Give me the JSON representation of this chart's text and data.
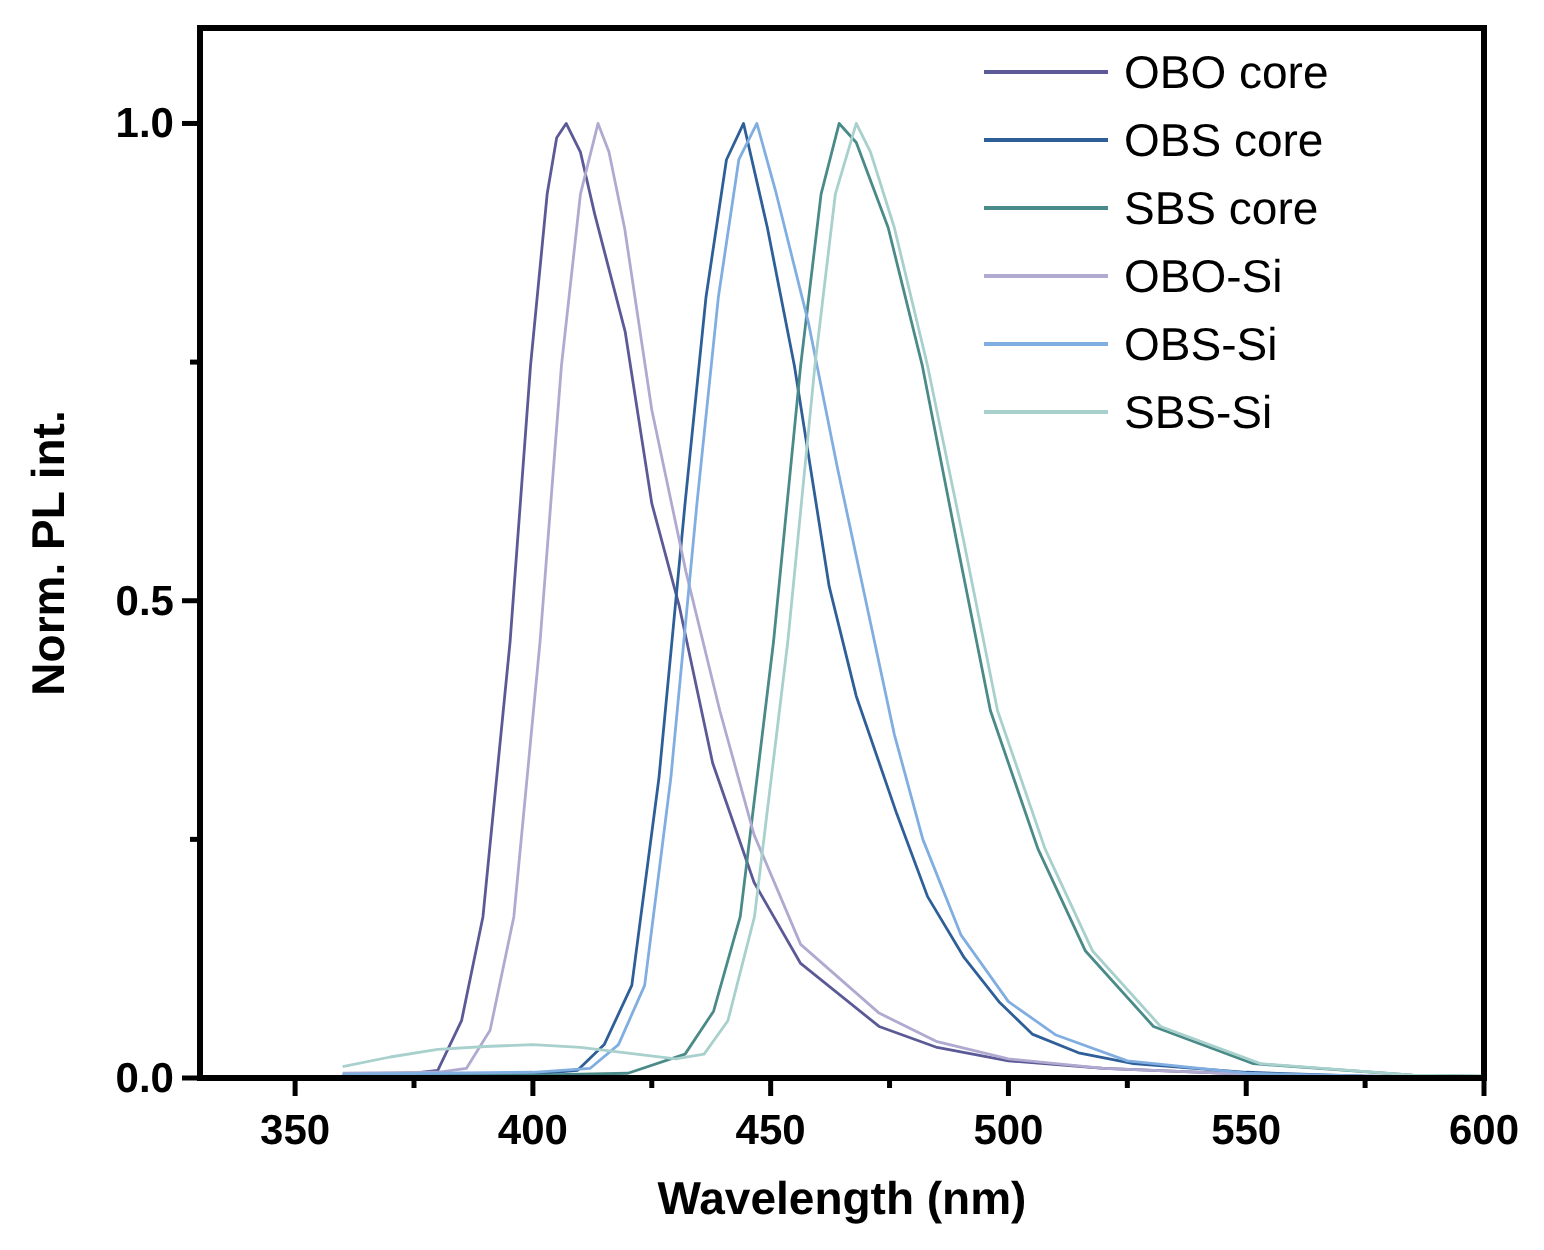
{
  "chart_data": {
    "type": "line",
    "xlabel": "Wavelength (nm)",
    "ylabel": "Norm. PL int.",
    "xlim": [
      330,
      600
    ],
    "ylim": [
      0,
      1.1
    ],
    "xticks": [
      350,
      {
        "value": 375,
        "label": null
      },
      400,
      {
        "value": 425,
        "label": null
      },
      450,
      {
        "value": 475,
        "label": null
      },
      500,
      {
        "value": 525,
        "label": null
      },
      550,
      {
        "value": 575,
        "label": null
      },
      600
    ],
    "yticks": [
      {
        "value": 0,
        "label": "0.0"
      },
      {
        "value": 0.25,
        "label": null
      },
      {
        "value": 0.5,
        "label": "0.5"
      },
      {
        "value": 0.75,
        "label": null
      },
      {
        "value": 1,
        "label": "1.0"
      }
    ],
    "grid": false,
    "legend": "top right",
    "marker": "none",
    "line_style": "solid",
    "series": [
      {
        "name": "OBO core",
        "color": "#5b5a96",
        "x": [
          360,
          370,
          375,
          380,
          385,
          389.5,
          395.2,
          399.5,
          403,
          405,
          407,
          410,
          413,
          419.4,
          425,
          430.8,
          437.8,
          446.5,
          456.3,
          472.8,
          485,
          500,
          520,
          550,
          575,
          600
        ],
        "values": [
          0.003,
          0.004,
          0.005,
          0.008,
          0.06,
          0.169,
          0.457,
          0.746,
          0.926,
          0.985,
          1,
          0.97,
          0.905,
          0.782,
          0.602,
          0.494,
          0.33,
          0.205,
          0.12,
          0.054,
          0.032,
          0.018,
          0.01,
          0.004,
          0.002,
          0.001
        ]
      },
      {
        "name": "OBS core",
        "color": "#2f5f98",
        "x": [
          360,
          380,
          400,
          409.4,
          415,
          420.8,
          426.5,
          432,
          436.4,
          440.7,
          444.3,
          449.3,
          455,
          462.3,
          468,
          476.5,
          483,
          490.7,
          498,
          505,
          515,
          526.3,
          550,
          575,
          600
        ],
        "values": [
          0.002,
          0.003,
          0.004,
          0.008,
          0.035,
          0.097,
          0.314,
          0.602,
          0.818,
          0.962,
          1,
          0.891,
          0.746,
          0.515,
          0.4,
          0.277,
          0.19,
          0.126,
          0.08,
          0.046,
          0.026,
          0.015,
          0.006,
          0.002,
          0.001
        ]
      },
      {
        "name": "SBS core",
        "color": "#4a8a88",
        "x": [
          360,
          400,
          420,
          432,
          438,
          443.6,
          450.6,
          456.3,
          460.6,
          464.4,
          468,
          474.7,
          481.9,
          489,
          496.2,
          506.2,
          516.2,
          530.5,
          551.5,
          585,
          600
        ],
        "values": [
          0.002,
          0.003,
          0.005,
          0.025,
          0.07,
          0.169,
          0.457,
          0.746,
          0.926,
          1,
          0.98,
          0.891,
          0.746,
          0.565,
          0.385,
          0.24,
          0.133,
          0.054,
          0.015,
          0.003,
          0.002
        ]
      },
      {
        "name": "OBO-Si",
        "color": "#b0aad0",
        "x": [
          360,
          380,
          386,
          391,
          396,
          401.5,
          406,
          410,
          413.7,
          416,
          419.3,
          425,
          432.2,
          439.3,
          446.5,
          456.3,
          472.8,
          485,
          500,
          520,
          550,
          575,
          600
        ],
        "values": [
          0.005,
          0.006,
          0.01,
          0.05,
          0.169,
          0.457,
          0.746,
          0.926,
          1,
          0.97,
          0.89,
          0.7,
          0.53,
          0.385,
          0.255,
          0.14,
          0.068,
          0.038,
          0.02,
          0.01,
          0.004,
          0.002,
          0.001
        ]
      },
      {
        "name": "OBS-Si",
        "color": "#80aee0",
        "x": [
          360,
          380,
          400,
          412,
          418,
          423.5,
          429,
          434.5,
          439,
          443.3,
          447.1,
          451,
          458,
          464,
          470,
          476,
          482,
          490,
          500,
          510,
          525,
          550,
          575,
          600
        ],
        "values": [
          0.004,
          0.005,
          0.006,
          0.01,
          0.035,
          0.097,
          0.314,
          0.602,
          0.818,
          0.962,
          1,
          0.93,
          0.79,
          0.64,
          0.5,
          0.36,
          0.25,
          0.15,
          0.08,
          0.045,
          0.018,
          0.005,
          0.002,
          0.001
        ]
      },
      {
        "name": "SBS-Si",
        "color": "#a8d0cc",
        "x": [
          360,
          370,
          380,
          390,
          400,
          410,
          420,
          430,
          436,
          441,
          446.6,
          453.6,
          459.3,
          463.6,
          468,
          471,
          476,
          483,
          490.5,
          497.7,
          507.7,
          517.7,
          532,
          553,
          585,
          600
        ],
        "values": [
          0.012,
          0.022,
          0.03,
          0.033,
          0.035,
          0.032,
          0.026,
          0.02,
          0.025,
          0.06,
          0.169,
          0.457,
          0.746,
          0.926,
          1,
          0.97,
          0.891,
          0.746,
          0.565,
          0.385,
          0.24,
          0.133,
          0.054,
          0.015,
          0.003,
          0.002
        ]
      }
    ]
  }
}
